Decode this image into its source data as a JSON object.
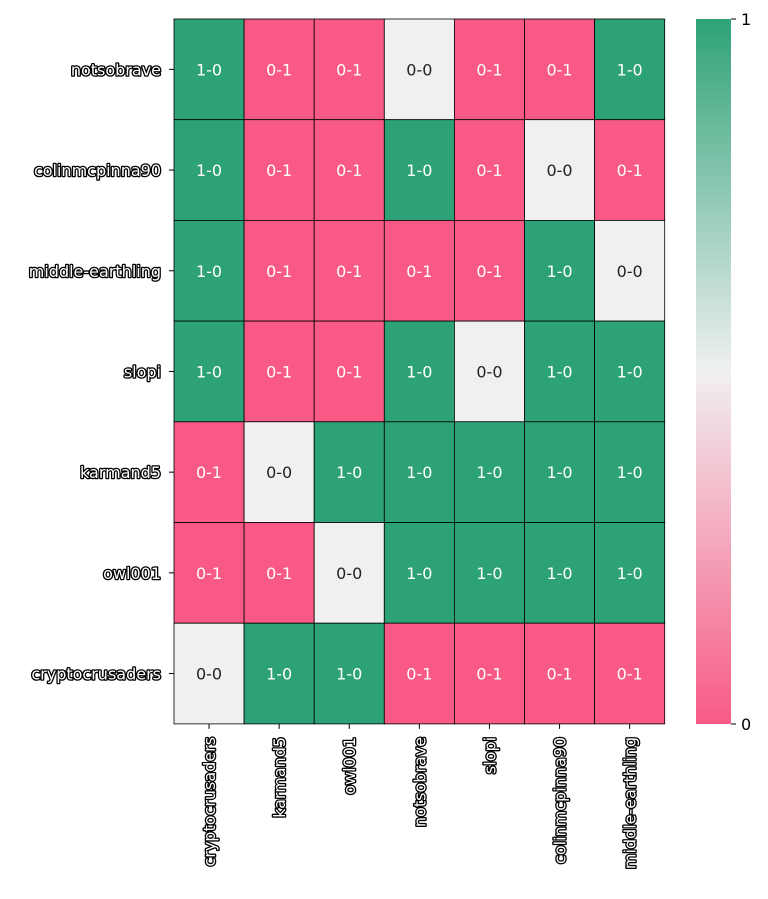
{
  "chart_data": {
    "type": "heatmap",
    "rows": [
      "notsobrave",
      "colinmcpinna90",
      "middle-earthling",
      "slopi",
      "karmand5",
      "owl001",
      "cryptocrusaders"
    ],
    "columns": [
      "cryptocrusaders",
      "karmand5",
      "owl001",
      "notsobrave",
      "slopi",
      "colinmcpinna90",
      "middle-earthling"
    ],
    "cells": [
      [
        "1-0",
        "0-1",
        "0-1",
        "0-0",
        "0-1",
        "0-1",
        "1-0"
      ],
      [
        "1-0",
        "0-1",
        "0-1",
        "1-0",
        "0-1",
        "0-0",
        "0-1"
      ],
      [
        "1-0",
        "0-1",
        "0-1",
        "0-1",
        "0-1",
        "1-0",
        "0-0"
      ],
      [
        "1-0",
        "0-1",
        "0-1",
        "1-0",
        "0-0",
        "1-0",
        "1-0"
      ],
      [
        "0-1",
        "0-0",
        "1-0",
        "1-0",
        "1-0",
        "1-0",
        "1-0"
      ],
      [
        "0-1",
        "0-1",
        "0-0",
        "1-0",
        "1-0",
        "1-0",
        "1-0"
      ],
      [
        "0-0",
        "1-0",
        "1-0",
        "0-1",
        "0-1",
        "0-1",
        "0-1"
      ]
    ],
    "values": [
      [
        1,
        0,
        0,
        0.5,
        0,
        0,
        1
      ],
      [
        1,
        0,
        0,
        1,
        0,
        0.5,
        0
      ],
      [
        1,
        0,
        0,
        0,
        0,
        1,
        0.5
      ],
      [
        1,
        0,
        0,
        1,
        0.5,
        1,
        1
      ],
      [
        0,
        0.5,
        1,
        1,
        1,
        1,
        1
      ],
      [
        0,
        0,
        0.5,
        1,
        1,
        1,
        1
      ],
      [
        0.5,
        1,
        1,
        0,
        0,
        0,
        0
      ]
    ],
    "colorbar": {
      "min": 0,
      "max": 1,
      "ticks": [
        "0",
        "1"
      ]
    },
    "colors": {
      "low": "#f85a85",
      "mid": "#f0f0f0",
      "high": "#2ea277",
      "grid": "#000000"
    }
  }
}
